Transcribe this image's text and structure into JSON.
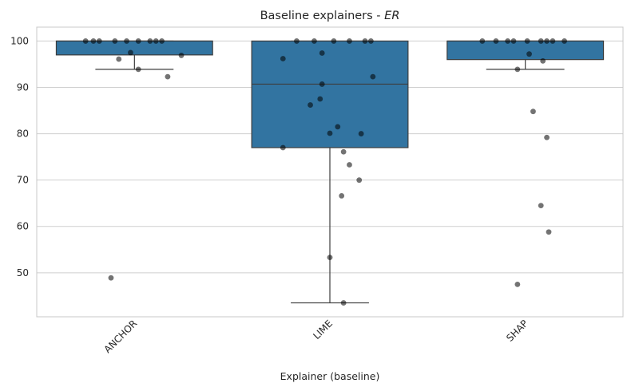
{
  "chart_data": {
    "type": "box",
    "title_prefix": "Baseline explainers - ",
    "title_italic": "ER",
    "xlabel": "Explainer (baseline)",
    "ylabel": "",
    "ylim": [
      40.5,
      103
    ],
    "yticks": [
      50,
      60,
      70,
      80,
      90,
      100
    ],
    "grid": true,
    "categories": [
      "ANCHOR",
      "LIME",
      "SHAP"
    ],
    "boxes": [
      {
        "name": "ANCHOR",
        "q1": 97.0,
        "median": 100,
        "q3": 100,
        "whisker_low": 93.9,
        "whisker_high": 100
      },
      {
        "name": "LIME",
        "q1": 77.0,
        "median": 90.7,
        "q3": 100,
        "whisker_low": 43.5,
        "whisker_high": 100
      },
      {
        "name": "SHAP",
        "q1": 96.0,
        "median": 100,
        "q3": 100,
        "whisker_low": 93.9,
        "whisker_high": 100
      }
    ],
    "points": [
      [
        {
          "v": 100,
          "j": -0.25
        },
        {
          "v": 100,
          "j": -0.18
        },
        {
          "v": 100,
          "j": -0.1
        },
        {
          "v": 100,
          "j": -0.04
        },
        {
          "v": 100,
          "j": 0.02
        },
        {
          "v": 100,
          "j": 0.08
        },
        {
          "v": 100,
          "j": 0.14
        },
        {
          "v": 100,
          "j": -0.21
        },
        {
          "v": 100,
          "j": 0.11
        },
        {
          "v": 97.5,
          "j": -0.02
        },
        {
          "v": 96.9,
          "j": 0.24
        },
        {
          "v": 96.1,
          "j": -0.08
        },
        {
          "v": 93.9,
          "j": 0.02
        },
        {
          "v": 92.3,
          "j": 0.17
        },
        {
          "v": 48.9,
          "j": -0.12
        }
      ],
      [
        {
          "v": 100,
          "j": -0.17
        },
        {
          "v": 100,
          "j": -0.08
        },
        {
          "v": 100,
          "j": 0.02
        },
        {
          "v": 100,
          "j": 0.1
        },
        {
          "v": 100,
          "j": 0.18
        },
        {
          "v": 100,
          "j": 0.21
        },
        {
          "v": 97.4,
          "j": -0.04
        },
        {
          "v": 96.2,
          "j": -0.24
        },
        {
          "v": 92.3,
          "j": 0.22
        },
        {
          "v": 90.7,
          "j": -0.04
        },
        {
          "v": 87.5,
          "j": -0.05
        },
        {
          "v": 86.2,
          "j": -0.1
        },
        {
          "v": 81.5,
          "j": 0.04
        },
        {
          "v": 80.1,
          "j": 0.0
        },
        {
          "v": 80.0,
          "j": 0.16
        },
        {
          "v": 77.0,
          "j": -0.24
        },
        {
          "v": 76.1,
          "j": 0.07
        },
        {
          "v": 73.3,
          "j": 0.1
        },
        {
          "v": 70.0,
          "j": 0.15
        },
        {
          "v": 66.6,
          "j": 0.06
        },
        {
          "v": 53.3,
          "j": 0.0
        },
        {
          "v": 43.5,
          "j": 0.07
        }
      ],
      [
        {
          "v": 100,
          "j": -0.22
        },
        {
          "v": 100,
          "j": -0.15
        },
        {
          "v": 100,
          "j": -0.06
        },
        {
          "v": 100,
          "j": 0.01
        },
        {
          "v": 100,
          "j": 0.08
        },
        {
          "v": 100,
          "j": 0.14
        },
        {
          "v": 100,
          "j": 0.2
        },
        {
          "v": 100,
          "j": -0.09
        },
        {
          "v": 100,
          "j": 0.11
        },
        {
          "v": 97.2,
          "j": 0.02
        },
        {
          "v": 95.7,
          "j": 0.09
        },
        {
          "v": 93.9,
          "j": -0.04
        },
        {
          "v": 84.8,
          "j": 0.04
        },
        {
          "v": 79.2,
          "j": 0.11
        },
        {
          "v": 64.5,
          "j": 0.08
        },
        {
          "v": 58.8,
          "j": 0.12
        },
        {
          "v": 47.5,
          "j": -0.04
        }
      ]
    ]
  }
}
